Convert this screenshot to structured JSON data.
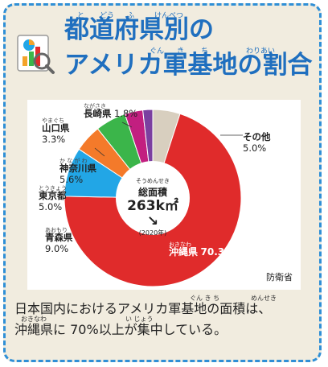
{
  "title": {
    "line1": "都道府県別の",
    "line2": "アメリカ軍基地の割合",
    "ruby_line1": [
      "と",
      "どう",
      "ふ",
      "けんべつ"
    ],
    "ruby_line2": [
      "ぐん",
      "き",
      "ち",
      "わりあい"
    ]
  },
  "center": {
    "kana": "そうめんせき",
    "label": "総面積",
    "value": "263k㎡",
    "year": "(2020年)"
  },
  "labels": {
    "okinawa": {
      "kana": "おきなわ",
      "name": "沖縄県",
      "pct": "70.3%"
    },
    "aomori": {
      "kana": "あおもり",
      "name": "青森県",
      "pct": "9.0%"
    },
    "tokyo": {
      "kana": "とうきょう",
      "name": "東京都",
      "pct": "5.0%"
    },
    "kanagawa": {
      "kana": "か な が わ",
      "name": "神奈川県",
      "pct": "5.6%"
    },
    "yamaguchi": {
      "kana": "やまぐち",
      "name": "山口県",
      "pct": "3.3%"
    },
    "nagasaki": {
      "kana": "ながさき",
      "name": "長崎県",
      "pct": "1.8%"
    },
    "other": {
      "name": "その他",
      "pct": "5.0%"
    }
  },
  "source": "防衛省",
  "caption": {
    "line1": "日本国内におけるアメリカ軍基地の面積は、",
    "line2": "沖縄県に 70%以上が集中している。",
    "ruby_line1": [
      "ぐん き ち",
      "めんせき"
    ],
    "ruby_line2": [
      "おきなわ",
      "い じょう"
    ]
  },
  "colors": {
    "accent": "#1f6fbf",
    "frame": "#2f8fd6",
    "background": "#f1ecdf"
  },
  "chart_data": {
    "type": "pie",
    "title": "都道府県別のアメリカ軍基地の割合",
    "center_text": "総面積 263k㎡ (2020年)",
    "slices": [
      {
        "label": "沖縄県",
        "value": 70.3,
        "color": "#e02b2b"
      },
      {
        "label": "青森県",
        "value": 9.0,
        "color": "#22a6e6"
      },
      {
        "label": "東京都",
        "value": 5.0,
        "color": "#f47a2a"
      },
      {
        "label": "神奈川県",
        "value": 5.6,
        "color": "#3bb54a"
      },
      {
        "label": "山口県",
        "value": 3.3,
        "color": "#c21f80"
      },
      {
        "label": "長崎県",
        "value": 1.8,
        "color": "#7b3fa0"
      },
      {
        "label": "その他",
        "value": 5.0,
        "color": "#d8cfbf"
      }
    ],
    "order_note": "clockwise from top: その他, 沖縄県, 青森県, 東京都, 神奈川県, 山口県, 長崎県"
  }
}
